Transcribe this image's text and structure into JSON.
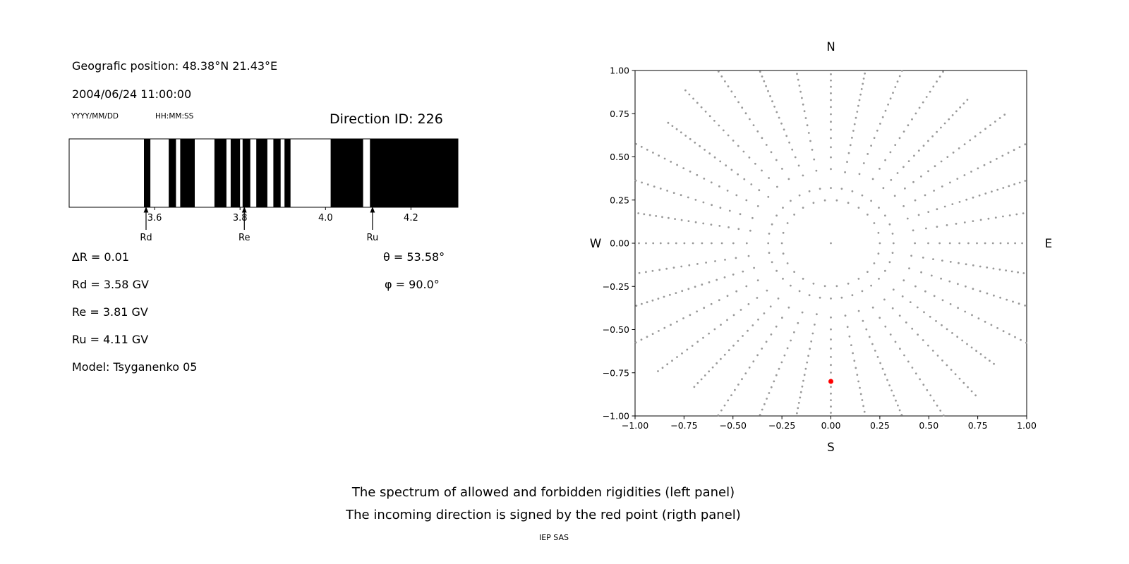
{
  "figure": {
    "background": "#ffffff",
    "text_color": "#000000"
  },
  "left_panel": {
    "geographic_position": "Geografic position: 48.38°N 21.43°E",
    "datetime": "2004/06/24 11:00:00",
    "date_format_label": "YYYY/MM/DD",
    "time_format_label": "HH:MM:SS",
    "direction_id": "Direction ID: 226",
    "delta_r": "∆R = 0.01",
    "theta": "θ = 53.58°",
    "rd": "Rd = 3.58 GV",
    "phi": "φ = 90.0°",
    "re": "Re = 3.81 GV",
    "ru": "Ru = 4.11 GV",
    "model": "Model: Tsyganenko 05"
  },
  "caption": {
    "line1": "The spectrum of allowed and forbidden rigidities (left panel)",
    "line2": "The incoming direction is signed by the red point (rigth panel)",
    "credit": "IEP SAS"
  },
  "chart_data": [
    {
      "type": "bar",
      "name": "rigidity-spectrum",
      "title": "",
      "xlim": [
        3.4,
        4.31
      ],
      "xticks": [
        3.6,
        3.8,
        4.0,
        4.2
      ],
      "xtick_decimals": 1,
      "black_bands_gv": [
        [
          3.575,
          3.59
        ],
        [
          3.633,
          3.65
        ],
        [
          3.66,
          3.694
        ],
        [
          3.74,
          3.768
        ],
        [
          3.778,
          3.8
        ],
        [
          3.806,
          3.824
        ],
        [
          3.838,
          3.864
        ],
        [
          3.878,
          3.895
        ],
        [
          3.904,
          3.918
        ],
        [
          4.012,
          4.088
        ],
        [
          4.104,
          4.31
        ]
      ],
      "markers": [
        {
          "label": "Rd",
          "x": 3.58
        },
        {
          "label": "Re",
          "x": 3.81
        },
        {
          "label": "Ru",
          "x": 4.11
        }
      ],
      "band_color": "#000000",
      "frame_color": "#000000",
      "background": "#ffffff",
      "grid": false,
      "legend": false
    },
    {
      "type": "scatter",
      "name": "asymptotic-directions",
      "title": "",
      "xlim": [
        -1.0,
        1.0
      ],
      "ylim": [
        -1.0,
        1.0
      ],
      "xticks": [
        -1.0,
        -0.75,
        -0.5,
        -0.25,
        0.0,
        0.25,
        0.5,
        0.75,
        1.0
      ],
      "yticks": [
        -1.0,
        -0.75,
        -0.5,
        -0.25,
        0.0,
        0.25,
        0.5,
        0.75,
        1.0
      ],
      "tick_decimals": 2,
      "compass_labels": {
        "top": "N",
        "bottom": "S",
        "left": "W",
        "right": "E"
      },
      "dot_color": "#999999",
      "dot_radius_px": 1.4,
      "rays": {
        "count": 36,
        "start_deg": 0,
        "step_deg": 10,
        "r_min": 0.32,
        "r_max": 1.14,
        "dots_per_ray": 20,
        "outward_density_exponent": 0.7
      },
      "inner_ring": {
        "radius": 0.25,
        "dot_count": 26
      },
      "center_dot": {
        "x": 0.0,
        "y": 0.0
      },
      "red_point": {
        "x": 0.0,
        "y": -0.8,
        "color": "#ff0000",
        "radius_px": 3.5
      },
      "grid": false,
      "legend": false
    }
  ]
}
